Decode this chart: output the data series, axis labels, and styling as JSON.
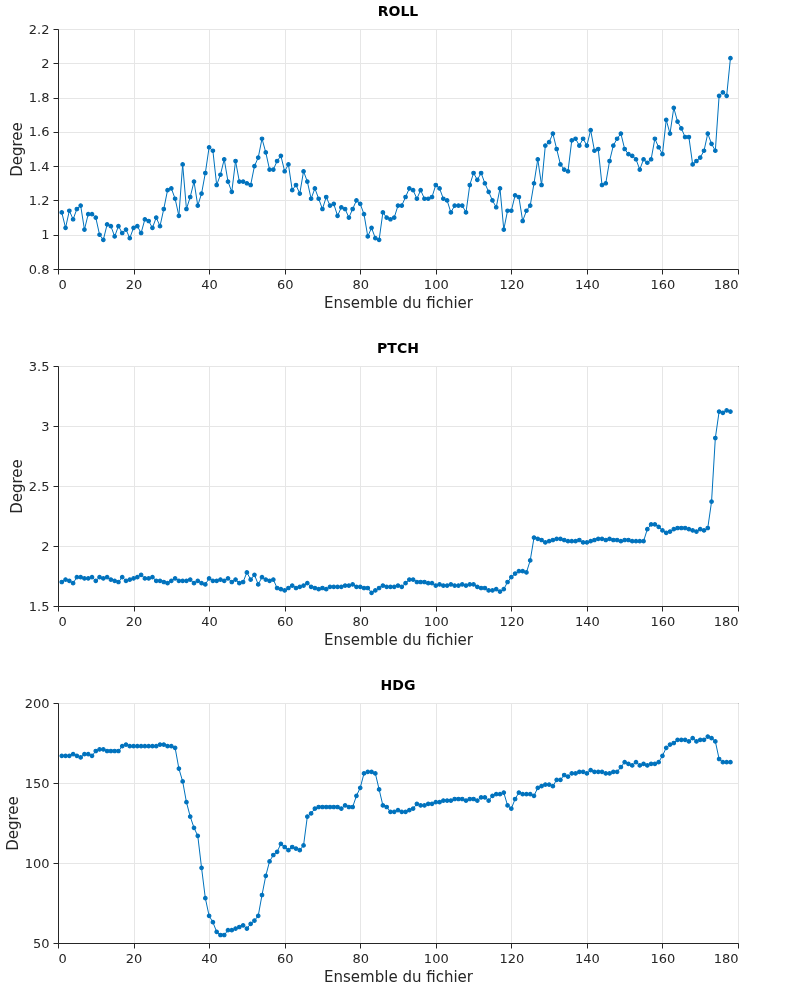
{
  "chart_data": [
    {
      "type": "line",
      "title": "ROLL",
      "xlabel": "Ensemble du fichier",
      "ylabel": "Degree",
      "xlim": [
        0,
        180
      ],
      "xticks": [
        0,
        20,
        40,
        60,
        80,
        100,
        120,
        140,
        160,
        180
      ],
      "ylim": [
        0.8,
        2.2
      ],
      "yticks": [
        0.8,
        1,
        1.2,
        1.4,
        1.6,
        1.8,
        2,
        2.2
      ],
      "grid": true,
      "marker": "circle",
      "line_style": "solid",
      "x": [
        1,
        2,
        3,
        4,
        5,
        6,
        7,
        8,
        9,
        10,
        11,
        12,
        13,
        14,
        15,
        16,
        17,
        18,
        19,
        20,
        21,
        22,
        23,
        24,
        25,
        26,
        27,
        28,
        29,
        30,
        31,
        32,
        33,
        34,
        35,
        36,
        37,
        38,
        39,
        40,
        41,
        42,
        43,
        44,
        45,
        46,
        47,
        48,
        49,
        50,
        51,
        52,
        53,
        54,
        55,
        56,
        57,
        58,
        59,
        60,
        61,
        62,
        63,
        64,
        65,
        66,
        67,
        68,
        69,
        70,
        71,
        72,
        73,
        74,
        75,
        76,
        77,
        78,
        79,
        80,
        81,
        82,
        83,
        84,
        85,
        86,
        87,
        88,
        89,
        90,
        91,
        92,
        93,
        94,
        95,
        96,
        97,
        98,
        99,
        100,
        101,
        102,
        103,
        104,
        105,
        106,
        107,
        108,
        109,
        110,
        111,
        112,
        113,
        114,
        115,
        116,
        117,
        118,
        119,
        120,
        121,
        122,
        123,
        124,
        125,
        126,
        127,
        128,
        129,
        130,
        131,
        132,
        133,
        134,
        135,
        136,
        137,
        138,
        139,
        140,
        141,
        142,
        143,
        144,
        145,
        146,
        147,
        148,
        149,
        150,
        151,
        152,
        153,
        154,
        155,
        156,
        157,
        158,
        159,
        160,
        161,
        162,
        163,
        164,
        165,
        166,
        167,
        168,
        169,
        170,
        171,
        172,
        173,
        174,
        175,
        176,
        177,
        178
      ],
      "series": [
        {
          "color": "#0072bd",
          "values": [
            1.13,
            1.04,
            1.14,
            1.09,
            1.15,
            1.17,
            1.03,
            1.12,
            1.12,
            1.1,
            1.0,
            0.97,
            1.06,
            1.05,
            0.99,
            1.05,
            1.01,
            1.03,
            0.98,
            1.04,
            1.05,
            1.01,
            1.09,
            1.08,
            1.04,
            1.1,
            1.05,
            1.15,
            1.26,
            1.27,
            1.21,
            1.11,
            1.41,
            1.15,
            1.22,
            1.31,
            1.17,
            1.24,
            1.36,
            1.51,
            1.49,
            1.29,
            1.35,
            1.44,
            1.31,
            1.25,
            1.43,
            1.31,
            1.31,
            1.3,
            1.29,
            1.4,
            1.45,
            1.56,
            1.48,
            1.38,
            1.38,
            1.43,
            1.46,
            1.37,
            1.41,
            1.26,
            1.29,
            1.24,
            1.37,
            1.31,
            1.21,
            1.27,
            1.21,
            1.15,
            1.22,
            1.17,
            1.18,
            1.11,
            1.16,
            1.15,
            1.1,
            1.15,
            1.2,
            1.18,
            1.12,
            0.99,
            1.04,
            0.98,
            0.97,
            1.13,
            1.1,
            1.09,
            1.1,
            1.17,
            1.17,
            1.22,
            1.27,
            1.26,
            1.21,
            1.26,
            1.21,
            1.21,
            1.22,
            1.29,
            1.27,
            1.21,
            1.2,
            1.13,
            1.17,
            1.17,
            1.17,
            1.13,
            1.29,
            1.36,
            1.32,
            1.36,
            1.3,
            1.25,
            1.2,
            1.16,
            1.27,
            1.03,
            1.14,
            1.14,
            1.23,
            1.22,
            1.08,
            1.14,
            1.17,
            1.3,
            1.44,
            1.29,
            1.52,
            1.54,
            1.59,
            1.5,
            1.41,
            1.38,
            1.37,
            1.55,
            1.56,
            1.52,
            1.56,
            1.52,
            1.61,
            1.49,
            1.5,
            1.29,
            1.3,
            1.43,
            1.52,
            1.56,
            1.59,
            1.5,
            1.47,
            1.46,
            1.44,
            1.38,
            1.44,
            1.42,
            1.44,
            1.56,
            1.51,
            1.47,
            1.67,
            1.59,
            1.74,
            1.66,
            1.62,
            1.57,
            1.57,
            1.41,
            1.43,
            1.45,
            1.49,
            1.59,
            1.53,
            1.49,
            1.81,
            1.83,
            1.81,
            2.03
          ]
        }
      ]
    },
    {
      "type": "line",
      "title": "PTCH",
      "xlabel": "Ensemble du fichier",
      "ylabel": "Degree",
      "xlim": [
        0,
        180
      ],
      "xticks": [
        0,
        20,
        40,
        60,
        80,
        100,
        120,
        140,
        160,
        180
      ],
      "ylim": [
        1.5,
        3.5
      ],
      "yticks": [
        1.5,
        2,
        2.5,
        3,
        3.5
      ],
      "grid": true,
      "marker": "circle",
      "line_style": "solid",
      "x": [
        1,
        2,
        3,
        4,
        5,
        6,
        7,
        8,
        9,
        10,
        11,
        12,
        13,
        14,
        15,
        16,
        17,
        18,
        19,
        20,
        21,
        22,
        23,
        24,
        25,
        26,
        27,
        28,
        29,
        30,
        31,
        32,
        33,
        34,
        35,
        36,
        37,
        38,
        39,
        40,
        41,
        42,
        43,
        44,
        45,
        46,
        47,
        48,
        49,
        50,
        51,
        52,
        53,
        54,
        55,
        56,
        57,
        58,
        59,
        60,
        61,
        62,
        63,
        64,
        65,
        66,
        67,
        68,
        69,
        70,
        71,
        72,
        73,
        74,
        75,
        76,
        77,
        78,
        79,
        80,
        81,
        82,
        83,
        84,
        85,
        86,
        87,
        88,
        89,
        90,
        91,
        92,
        93,
        94,
        95,
        96,
        97,
        98,
        99,
        100,
        101,
        102,
        103,
        104,
        105,
        106,
        107,
        108,
        109,
        110,
        111,
        112,
        113,
        114,
        115,
        116,
        117,
        118,
        119,
        120,
        121,
        122,
        123,
        124,
        125,
        126,
        127,
        128,
        129,
        130,
        131,
        132,
        133,
        134,
        135,
        136,
        137,
        138,
        139,
        140,
        141,
        142,
        143,
        144,
        145,
        146,
        147,
        148,
        149,
        150,
        151,
        152,
        153,
        154,
        155,
        156,
        157,
        158,
        159,
        160,
        161,
        162,
        163,
        164,
        165,
        166,
        167,
        168,
        169,
        170,
        171,
        172,
        173,
        174,
        175,
        176,
        177,
        178
      ],
      "series": [
        {
          "color": "#0072bd",
          "values": [
            1.7,
            1.72,
            1.71,
            1.69,
            1.74,
            1.74,
            1.73,
            1.73,
            1.74,
            1.71,
            1.74,
            1.73,
            1.74,
            1.72,
            1.71,
            1.7,
            1.74,
            1.71,
            1.72,
            1.73,
            1.74,
            1.76,
            1.73,
            1.73,
            1.74,
            1.71,
            1.71,
            1.7,
            1.69,
            1.71,
            1.73,
            1.71,
            1.71,
            1.71,
            1.72,
            1.69,
            1.71,
            1.69,
            1.68,
            1.73,
            1.71,
            1.71,
            1.72,
            1.71,
            1.73,
            1.7,
            1.72,
            1.69,
            1.7,
            1.78,
            1.72,
            1.76,
            1.68,
            1.74,
            1.72,
            1.71,
            1.72,
            1.65,
            1.64,
            1.63,
            1.65,
            1.67,
            1.65,
            1.66,
            1.67,
            1.69,
            1.66,
            1.65,
            1.64,
            1.65,
            1.64,
            1.66,
            1.66,
            1.66,
            1.66,
            1.67,
            1.67,
            1.68,
            1.66,
            1.66,
            1.65,
            1.65,
            1.61,
            1.63,
            1.65,
            1.67,
            1.66,
            1.66,
            1.66,
            1.67,
            1.66,
            1.69,
            1.72,
            1.72,
            1.7,
            1.7,
            1.7,
            1.69,
            1.69,
            1.67,
            1.68,
            1.67,
            1.67,
            1.68,
            1.67,
            1.67,
            1.68,
            1.67,
            1.68,
            1.68,
            1.66,
            1.65,
            1.65,
            1.63,
            1.63,
            1.64,
            1.62,
            1.64,
            1.7,
            1.74,
            1.77,
            1.79,
            1.79,
            1.78,
            1.88,
            2.07,
            2.06,
            2.05,
            2.03,
            2.04,
            2.05,
            2.06,
            2.06,
            2.05,
            2.04,
            2.04,
            2.04,
            2.05,
            2.03,
            2.03,
            2.04,
            2.05,
            2.06,
            2.06,
            2.05,
            2.06,
            2.05,
            2.05,
            2.04,
            2.05,
            2.05,
            2.04,
            2.04,
            2.04,
            2.04,
            2.14,
            2.18,
            2.18,
            2.16,
            2.13,
            2.11,
            2.12,
            2.14,
            2.15,
            2.15,
            2.15,
            2.14,
            2.13,
            2.12,
            2.14,
            2.13,
            2.15,
            2.37,
            2.9,
            3.12,
            3.11,
            3.13,
            3.12
          ]
        }
      ]
    },
    {
      "type": "line",
      "title": "HDG",
      "xlabel": "Ensemble du fichier",
      "ylabel": "Degree",
      "xlim": [
        0,
        180
      ],
      "xticks": [
        0,
        20,
        40,
        60,
        80,
        100,
        120,
        140,
        160,
        180
      ],
      "ylim": [
        50,
        200
      ],
      "yticks": [
        50,
        100,
        150,
        200
      ],
      "grid": true,
      "marker": "circle",
      "line_style": "solid",
      "x": [
        1,
        2,
        3,
        4,
        5,
        6,
        7,
        8,
        9,
        10,
        11,
        12,
        13,
        14,
        15,
        16,
        17,
        18,
        19,
        20,
        21,
        22,
        23,
        24,
        25,
        26,
        27,
        28,
        29,
        30,
        31,
        32,
        33,
        34,
        35,
        36,
        37,
        38,
        39,
        40,
        41,
        42,
        43,
        44,
        45,
        46,
        47,
        48,
        49,
        50,
        51,
        52,
        53,
        54,
        55,
        56,
        57,
        58,
        59,
        60,
        61,
        62,
        63,
        64,
        65,
        66,
        67,
        68,
        69,
        70,
        71,
        72,
        73,
        74,
        75,
        76,
        77,
        78,
        79,
        80,
        81,
        82,
        83,
        84,
        85,
        86,
        87,
        88,
        89,
        90,
        91,
        92,
        93,
        94,
        95,
        96,
        97,
        98,
        99,
        100,
        101,
        102,
        103,
        104,
        105,
        106,
        107,
        108,
        109,
        110,
        111,
        112,
        113,
        114,
        115,
        116,
        117,
        118,
        119,
        120,
        121,
        122,
        123,
        124,
        125,
        126,
        127,
        128,
        129,
        130,
        131,
        132,
        133,
        134,
        135,
        136,
        137,
        138,
        139,
        140,
        141,
        142,
        143,
        144,
        145,
        146,
        147,
        148,
        149,
        150,
        151,
        152,
        153,
        154,
        155,
        156,
        157,
        158,
        159,
        160,
        161,
        162,
        163,
        164,
        165,
        166,
        167,
        168,
        169,
        170,
        171,
        172,
        173,
        174,
        175,
        176,
        177,
        178
      ],
      "series": [
        {
          "color": "#0072bd",
          "values": [
            167,
            167,
            167,
            168,
            167,
            166,
            168,
            168,
            167,
            170,
            171,
            171,
            170,
            170,
            170,
            170,
            173,
            174,
            173,
            173,
            173,
            173,
            173,
            173,
            173,
            173,
            174,
            174,
            173,
            173,
            172,
            159,
            151,
            138,
            129,
            122,
            117,
            97,
            78,
            67,
            63,
            57,
            55,
            55,
            58,
            58,
            59,
            60,
            61,
            59,
            62,
            64,
            67,
            80,
            92,
            101,
            105,
            107,
            112,
            110,
            108,
            110,
            109,
            108,
            111,
            129,
            131,
            134,
            135,
            135,
            135,
            135,
            135,
            135,
            134,
            136,
            135,
            135,
            142,
            147,
            156,
            157,
            157,
            156,
            146,
            136,
            135,
            132,
            132,
            133,
            132,
            132,
            133,
            134,
            137,
            136,
            136,
            137,
            137,
            138,
            138,
            139,
            139,
            139,
            140,
            140,
            140,
            139,
            140,
            140,
            139,
            141,
            141,
            139,
            142,
            143,
            143,
            144,
            136,
            134,
            140,
            144,
            143,
            143,
            143,
            142,
            147,
            148,
            149,
            149,
            148,
            152,
            152,
            155,
            154,
            156,
            156,
            157,
            157,
            156,
            158,
            157,
            157,
            157,
            156,
            156,
            157,
            157,
            160,
            163,
            162,
            161,
            163,
            161,
            162,
            161,
            162,
            162,
            163,
            167,
            172,
            174,
            175,
            177,
            177,
            177,
            176,
            178,
            176,
            177,
            177,
            179,
            178,
            176,
            165,
            163,
            163,
            163
          ]
        }
      ]
    }
  ]
}
